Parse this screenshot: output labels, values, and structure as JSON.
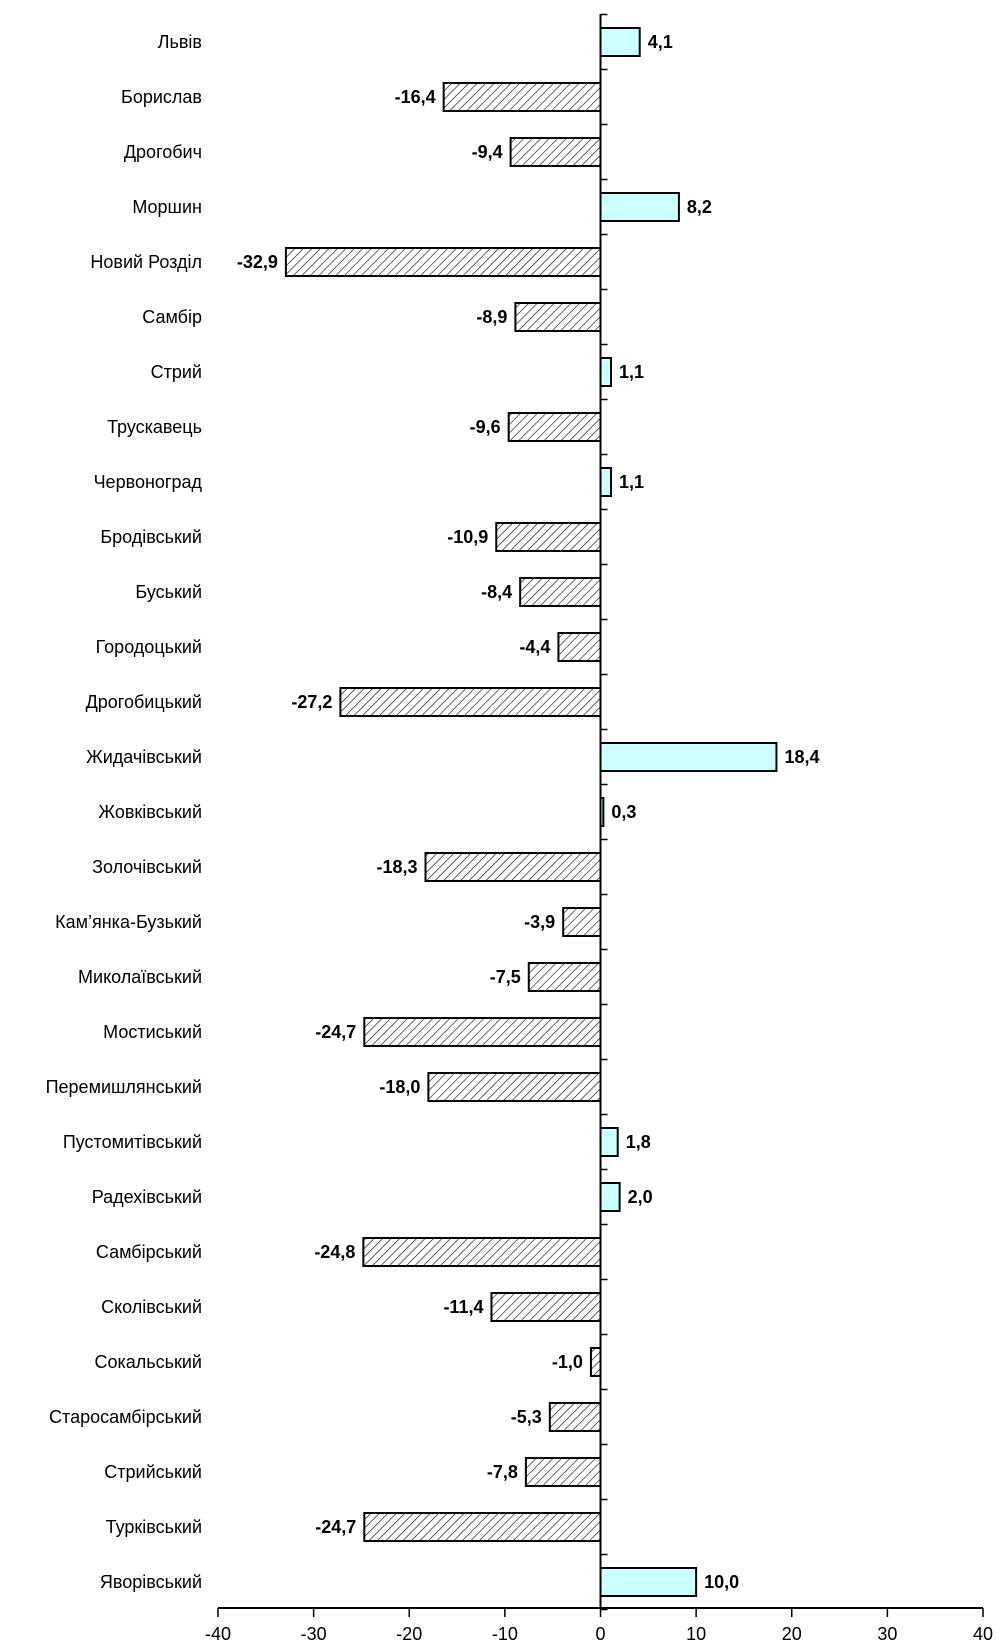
{
  "chart_data": {
    "type": "bar",
    "orientation": "horizontal",
    "categories": [
      "Львів",
      "Борислав",
      "Дрогобич",
      "Моршин",
      "Новий Розділ",
      "Самбір",
      "Стрий",
      "Трускавець",
      "Червоноград",
      "Бродівський",
      "Буський",
      "Городоцький",
      "Дрогобицький",
      "Жидачівський",
      "Жовківський",
      "Золочівський",
      "Кам’янка-Бузький",
      "Миколаївський",
      "Мостиський",
      "Перемишлянський",
      "Пустомитівський",
      "Радехівський",
      "Самбірський",
      "Сколівський",
      "Сокальський",
      "Старосамбірський",
      "Стрийський",
      "Турківський",
      "Яворівський"
    ],
    "values": [
      4.1,
      -16.4,
      -9.4,
      8.2,
      -32.9,
      -8.9,
      1.1,
      -9.6,
      1.1,
      -10.9,
      -8.4,
      -4.4,
      -27.2,
      18.4,
      0.3,
      -18.3,
      -3.9,
      -7.5,
      -24.7,
      -18.0,
      1.8,
      2.0,
      -24.8,
      -11.4,
      -1.0,
      -5.3,
      -7.8,
      -24.7,
      10.0
    ],
    "value_labels": [
      "4,1",
      "-16,4",
      "-9,4",
      "8,2",
      "-32,9",
      "-8,9",
      "1,1",
      "-9,6",
      "1,1",
      "-10,9",
      "-8,4",
      "-4,4",
      "-27,2",
      "18,4",
      "0,3",
      "-18,3",
      "-3,9",
      "-7,5",
      "-24,7",
      "-18,0",
      "1,8",
      "2,0",
      "-24,8",
      "-11,4",
      "-1,0",
      "-5,3",
      "-7,8",
      "-24,7",
      "10,0"
    ],
    "xlim": [
      -40,
      40
    ],
    "xticks": [
      -40,
      -30,
      -20,
      -10,
      0,
      10,
      20,
      30,
      40
    ],
    "xtick_labels": [
      "-40",
      "-30",
      "-20",
      "-10",
      "0",
      "10",
      "20",
      "30",
      "40"
    ],
    "title": "",
    "xlabel": "",
    "ylabel": "",
    "grid": false,
    "legend": "none",
    "colors": {
      "positive_fill": "#ccffff",
      "negative_fill": "#ffffff",
      "negative_hatch": "#000000",
      "stroke": "#000000"
    }
  }
}
